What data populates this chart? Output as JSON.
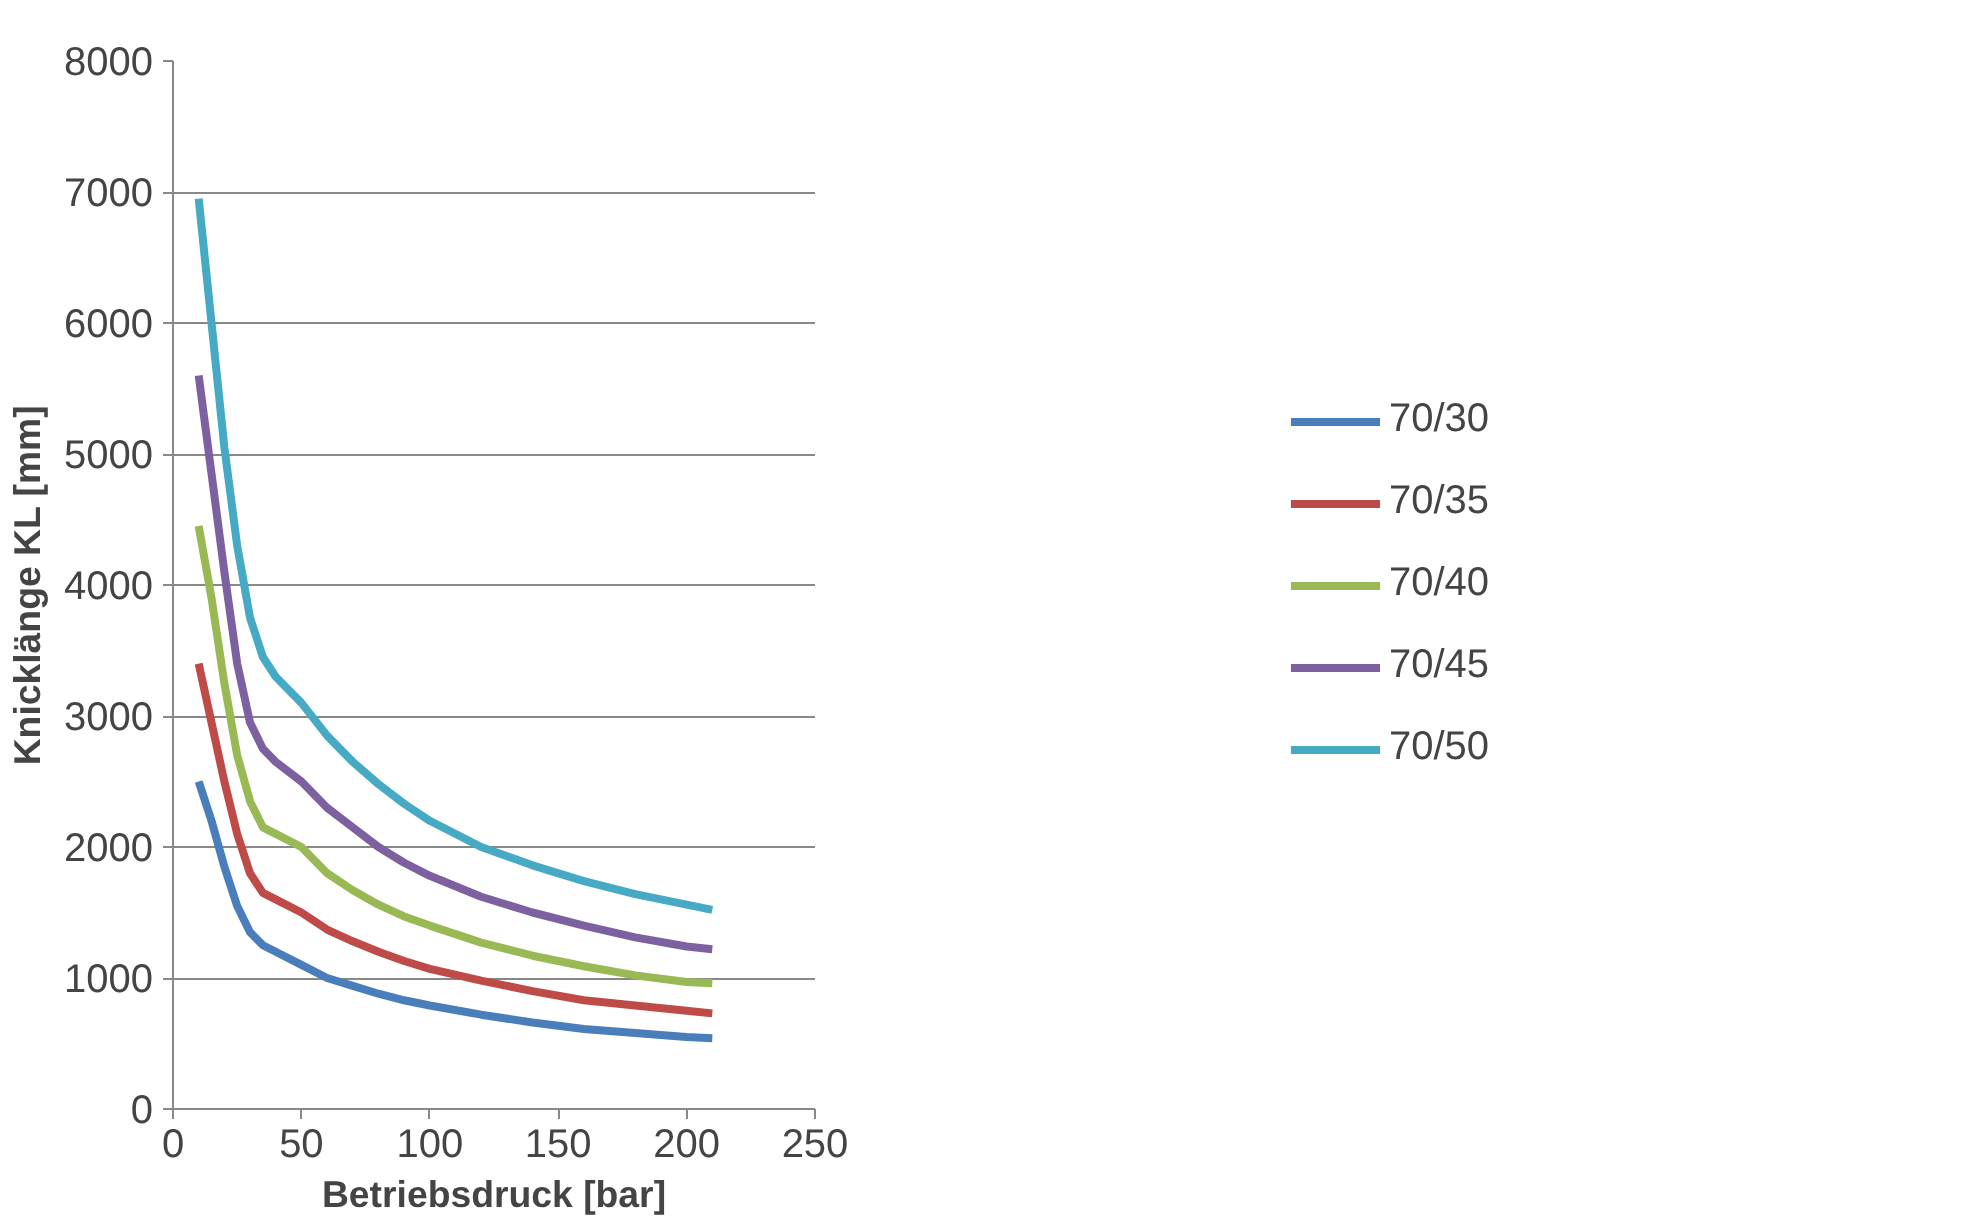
{
  "chart_data": {
    "type": "line",
    "xlabel": "Betriebsdruck [bar]",
    "ylabel": "Knicklänge KL [mm]",
    "x": [
      10,
      15,
      20,
      25,
      30,
      35,
      40,
      50,
      60,
      70,
      80,
      90,
      100,
      120,
      140,
      160,
      180,
      200,
      210
    ],
    "series": [
      {
        "name": "70/30",
        "color": "#4a7ebb",
        "values": [
          2500,
          2200,
          1850,
          1550,
          1350,
          1250,
          1200,
          1100,
          1000,
          940,
          880,
          830,
          790,
          720,
          660,
          610,
          580,
          550,
          540
        ]
      },
      {
        "name": "70/35",
        "color": "#be4b48",
        "values": [
          3400,
          2950,
          2500,
          2100,
          1800,
          1650,
          1600,
          1500,
          1370,
          1280,
          1200,
          1130,
          1070,
          980,
          900,
          830,
          790,
          750,
          730
        ]
      },
      {
        "name": "70/40",
        "color": "#98b954",
        "values": [
          4450,
          3900,
          3250,
          2700,
          2350,
          2150,
          2100,
          2000,
          1800,
          1670,
          1560,
          1470,
          1400,
          1270,
          1170,
          1090,
          1020,
          970,
          960
        ]
      },
      {
        "name": "70/45",
        "color": "#7d60a0",
        "values": [
          5600,
          4850,
          4100,
          3400,
          2950,
          2750,
          2650,
          2500,
          2300,
          2150,
          2000,
          1880,
          1780,
          1620,
          1500,
          1400,
          1310,
          1240,
          1220
        ]
      },
      {
        "name": "70/50",
        "color": "#46aac5",
        "values": [
          6950,
          6000,
          5050,
          4300,
          3750,
          3450,
          3300,
          3100,
          2850,
          2650,
          2480,
          2330,
          2200,
          2000,
          1860,
          1740,
          1640,
          1560,
          1520
        ]
      }
    ],
    "xlim": [
      0,
      250
    ],
    "xticks": [
      0,
      50,
      100,
      150,
      200,
      250
    ],
    "ylim": [
      0,
      8000
    ],
    "yticks": [
      0,
      1000,
      2000,
      3000,
      4000,
      5000,
      6000,
      7000,
      8000
    ],
    "grid": "y",
    "legend": "right",
    "marker": "none",
    "line_style": "solid"
  }
}
